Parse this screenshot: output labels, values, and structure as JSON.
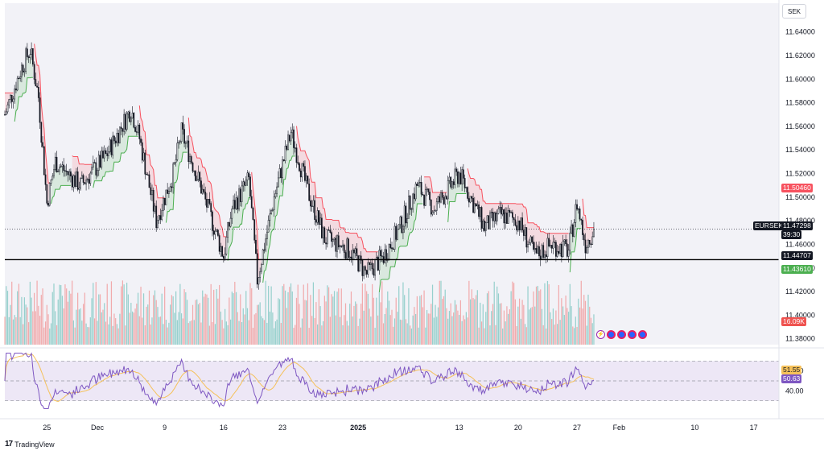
{
  "header": {
    "currency": "SEK"
  },
  "brand": {
    "name": "TradingView",
    "mark": "17"
  },
  "colors": {
    "up": "#26a69a",
    "down": "#ef5350",
    "trail_down": "#f7525f",
    "trail_up": "#4caf50",
    "rsi_line": "#7e57c2",
    "rsi_ma": "#f5c15a",
    "rsi_band_fill": "#ede7f6"
  },
  "price_axis": {
    "ticks": [
      "11.64000",
      "11.62000",
      "11.60000",
      "11.58000",
      "11.56000",
      "11.54000",
      "11.52000",
      "11.50000",
      "11.48000",
      "11.46000",
      "11.44000",
      "11.42000",
      "11.40000",
      "11.38000"
    ],
    "tick_values": [
      11.64,
      11.62,
      11.6,
      11.58,
      11.56,
      11.54,
      11.52,
      11.5,
      11.48,
      11.46,
      11.44,
      11.42,
      11.4,
      11.38
    ]
  },
  "rsi_axis": {
    "ticks": [
      "60.00",
      "40.00"
    ],
    "tick_values": [
      60,
      40
    ]
  },
  "date_axis": {
    "labels": [
      "25",
      "Dec",
      "9",
      "16",
      "23",
      "2025",
      "13",
      "20",
      "27",
      "Feb",
      "10",
      "17"
    ]
  },
  "price_tags": {
    "trail_upper": {
      "value": "11.50460",
      "bg": "#f7525f",
      "fg": "#ffffff"
    },
    "symbol": {
      "label": "EURSEK",
      "bg": "#131722",
      "fg": "#ffffff"
    },
    "last_price": {
      "value": "11.47298",
      "bg": "#131722",
      "fg": "#ffffff"
    },
    "countdown": {
      "value": "39:30",
      "bg": "#131722",
      "fg": "#ffffff"
    },
    "hline": {
      "value": "11.44707",
      "bg": "#131722",
      "fg": "#ffffff"
    },
    "trail_lower": {
      "value": "11.43610",
      "bg": "#4caf50",
      "fg": "#ffffff"
    },
    "volume": {
      "value": "16.09K",
      "bg": "#ef5350",
      "fg": "#ffffff"
    },
    "rsi_ma": {
      "value": "51.55",
      "bg": "#f5c15a",
      "fg": "#131722"
    },
    "rsi": {
      "value": "50.63",
      "bg": "#7e57c2",
      "fg": "#ffffff"
    }
  },
  "events": {
    "icons": [
      "bolt-icon",
      "flag-icon",
      "flag-icon",
      "flag-icon",
      "flag-icon"
    ],
    "glyphs": [
      "⚡",
      "",
      "",
      "",
      ""
    ]
  },
  "chart_data": {
    "type": "candlestick",
    "symbol": "EURSEK",
    "x_range": [
      "2024-11-20",
      "2025-02-20"
    ],
    "ylim": [
      11.375,
      11.648
    ],
    "horizontal_line": 11.44707,
    "last_price": 11.47298,
    "trailing_stop_upper": 11.5046,
    "trailing_stop_lower": 11.4361,
    "keypoints": [
      {
        "date": "2024-11-20",
        "close": 11.57
      },
      {
        "date": "2024-11-22",
        "close": 11.61
      },
      {
        "date": "2024-11-23",
        "close": 11.625
      },
      {
        "date": "2024-11-24",
        "close": 11.585
      },
      {
        "date": "2024-11-25",
        "close": 11.495
      },
      {
        "date": "2024-11-26",
        "close": 11.53
      },
      {
        "date": "2024-11-29",
        "close": 11.51
      },
      {
        "date": "2024-12-02",
        "close": 11.535
      },
      {
        "date": "2024-12-05",
        "close": 11.575
      },
      {
        "date": "2024-12-06",
        "close": 11.55
      },
      {
        "date": "2024-12-08",
        "close": 11.48
      },
      {
        "date": "2024-12-10",
        "close": 11.52
      },
      {
        "date": "2024-12-11",
        "close": 11.555
      },
      {
        "date": "2024-12-13",
        "close": 11.515
      },
      {
        "date": "2024-12-16",
        "close": 11.45
      },
      {
        "date": "2024-12-17",
        "close": 11.49
      },
      {
        "date": "2024-12-19",
        "close": 11.515
      },
      {
        "date": "2024-12-20",
        "close": 11.43
      },
      {
        "date": "2024-12-22",
        "close": 11.5
      },
      {
        "date": "2024-12-24",
        "close": 11.555
      },
      {
        "date": "2024-12-26",
        "close": 11.505
      },
      {
        "date": "2024-12-28",
        "close": 11.465
      },
      {
        "date": "2024-12-31",
        "close": 11.455
      },
      {
        "date": "2025-01-02",
        "close": 11.435
      },
      {
        "date": "2025-01-04",
        "close": 11.45
      },
      {
        "date": "2025-01-06",
        "close": 11.475
      },
      {
        "date": "2025-01-08",
        "close": 11.51
      },
      {
        "date": "2025-01-10",
        "close": 11.49
      },
      {
        "date": "2025-01-13",
        "close": 11.52
      },
      {
        "date": "2025-01-14",
        "close": 11.505
      },
      {
        "date": "2025-01-16",
        "close": 11.475
      },
      {
        "date": "2025-01-18",
        "close": 11.485
      },
      {
        "date": "2025-01-20",
        "close": 11.48
      },
      {
        "date": "2025-01-22",
        "close": 11.45
      },
      {
        "date": "2025-01-24",
        "close": 11.46
      },
      {
        "date": "2025-01-26",
        "close": 11.455
      },
      {
        "date": "2025-01-27",
        "close": 11.495
      },
      {
        "date": "2025-01-28",
        "close": 11.46
      },
      {
        "date": "2025-01-29",
        "close": 11.473
      }
    ],
    "rsi": {
      "length": 14,
      "current": 50.63,
      "ma_current": 51.55,
      "levels": [
        70,
        50,
        30
      ]
    },
    "volume": {
      "last": "16.09K"
    }
  }
}
